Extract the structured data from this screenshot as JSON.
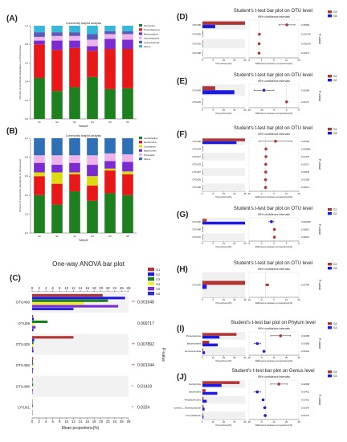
{
  "chart_data": [
    {
      "id": "A",
      "panel_label": "(A)",
      "type": "bar",
      "stacked": true,
      "title": "Community barplot analysis",
      "xlabel": "Sample",
      "ylabel": "Percent of community abundance on Phylum level",
      "categories": [
        "S1",
        "S2",
        "S3",
        "S4",
        "S5",
        "S6"
      ],
      "ylim": [
        0,
        1
      ],
      "legend_position": "top-right",
      "series": [
        {
          "name": "Firmicutes",
          "color": "#1e7f1e",
          "values": [
            0.44,
            0.3,
            0.34,
            0.45,
            0.32,
            0.33
          ]
        },
        {
          "name": "Proteobacteria",
          "color": "#e81818",
          "values": [
            0.36,
            0.44,
            0.42,
            0.28,
            0.43,
            0.42
          ]
        },
        {
          "name": "Bacteroidetes",
          "color": "#7a2cd1",
          "values": [
            0.04,
            0.1,
            0.08,
            0.05,
            0.11,
            0.1
          ]
        },
        {
          "name": "Actinobacteria",
          "color": "#efb3ec",
          "values": [
            0.04,
            0.05,
            0.05,
            0.07,
            0.05,
            0.06
          ]
        },
        {
          "name": "Cyanobacteria",
          "color": "#5a5ab8",
          "values": [
            0.05,
            0.04,
            0.04,
            0.06,
            0.03,
            0.03
          ]
        },
        {
          "name": "others",
          "color": "#38b7d8",
          "values": [
            0.07,
            0.07,
            0.07,
            0.09,
            0.06,
            0.06
          ]
        }
      ]
    },
    {
      "id": "B",
      "panel_label": "(B)",
      "type": "bar",
      "stacked": true,
      "title": "Community barplot analysis",
      "xlabel": "Sample",
      "ylabel": "Percent of community abundance on Genus level",
      "categories": [
        "S1",
        "S2",
        "S3",
        "S4",
        "S5",
        "S6"
      ],
      "ylim": [
        0,
        1
      ],
      "legend_position": "right",
      "series": [
        {
          "name": "Lactobacillus",
          "color": "#1e7f1e",
          "values": [
            0.4,
            0.3,
            0.44,
            0.34,
            0.42,
            0.4
          ]
        },
        {
          "name": "Escherichia",
          "color": "#e81818",
          "values": [
            0.2,
            0.22,
            0.18,
            0.16,
            0.24,
            0.22
          ]
        },
        {
          "name": "Clostridium",
          "color": "#dcdc10",
          "values": [
            0.04,
            0.12,
            0.02,
            0.1,
            0.02,
            0.03
          ]
        },
        {
          "name": "Bacteroides",
          "color": "#7a2cd1",
          "values": [
            0.1,
            0.08,
            0.1,
            0.12,
            0.08,
            0.1
          ]
        },
        {
          "name": "Prevotella",
          "color": "#efb3ec",
          "values": [
            0.08,
            0.1,
            0.08,
            0.1,
            0.08,
            0.08
          ]
        },
        {
          "name": "others",
          "color": "#2e6fb5",
          "values": [
            0.18,
            0.18,
            0.18,
            0.18,
            0.16,
            0.17
          ]
        }
      ]
    },
    {
      "id": "C",
      "panel_label": "(C)",
      "type": "bar",
      "orientation": "horizontal",
      "title": "One-way ANOVA bar plot",
      "xlabel": "Mean proportions(%)",
      "ylabel": "",
      "right_label": "P-value",
      "xlim": [
        0,
        28
      ],
      "xticks": [
        0,
        2,
        4,
        6,
        8,
        10,
        12,
        14,
        16,
        18,
        20,
        22,
        24,
        26,
        28
      ],
      "categories": [
        "OTU499",
        "OTU09",
        "OTU429",
        "OTU459",
        "OTU498",
        "OTU01"
      ],
      "p_values": [
        "0.001648",
        "0.069717",
        "0.007892",
        "0.001344",
        "0.01419",
        "0.0324"
      ],
      "sig_marks": [
        "**",
        "",
        "**",
        "**",
        "*",
        "*"
      ],
      "series": [
        {
          "name": "G1",
          "color": "#b03535",
          "values": [
            20.5,
            0.3,
            12,
            0.3,
            0.2,
            0.1
          ]
        },
        {
          "name": "G2",
          "color": "#1a1ae0",
          "values": [
            27,
            0.5,
            0.6,
            0.2,
            0.1,
            0.1
          ]
        },
        {
          "name": "G3",
          "color": "#1e7f1e",
          "values": [
            22,
            4.5,
            0.4,
            0.3,
            0.3,
            0.2
          ]
        },
        {
          "name": "G4",
          "color": "#f0f030",
          "values": [
            15,
            0.6,
            0.5,
            0.2,
            0.1,
            0.1
          ]
        },
        {
          "name": "G5",
          "color": "#7a2cd1",
          "values": [
            25,
            1.0,
            0.3,
            0.3,
            0.2,
            0.1
          ]
        },
        {
          "name": "G6",
          "color": "#2b2bd0",
          "values": [
            12,
            0.4,
            0.4,
            0.2,
            0.1,
            0.1
          ]
        }
      ]
    },
    {
      "id": "D",
      "panel_label": "(D)",
      "type": "bar",
      "orientation": "horizontal",
      "title": "Student's t-test bar plot on OTU level",
      "ci_title": "95% confidence intervals",
      "xlabel": "Proportions(%)",
      "ci_xlabel": "Difference between proportions(%)",
      "right_label": "P-value",
      "groups": [
        {
          "name": "G5",
          "color": "#b03535"
        },
        {
          "name": "G6",
          "color": "#1a1ae0"
        }
      ],
      "categories": [
        "OTU499",
        "OTU459",
        "OTU429",
        "OTU498"
      ],
      "group1": [
        20,
        0.3,
        0.2,
        0.1
      ],
      "group2": [
        6,
        0.1,
        0.1,
        0.1
      ],
      "xlim": [
        0,
        20
      ],
      "ci_xlim": [
        -5,
        20
      ],
      "diff": [
        14,
        0.2,
        0.1,
        0.05
      ],
      "ci_low": [
        10,
        0.05,
        0.02,
        0.0
      ],
      "ci_high": [
        18,
        0.35,
        0.2,
        0.1
      ],
      "p_values": [
        "0.00595",
        "0.001748",
        "0.002148",
        "0.00371"
      ]
    },
    {
      "id": "E",
      "panel_label": "(E)",
      "type": "bar",
      "orientation": "horizontal",
      "title": "Student's t-test bar plot on OTU level",
      "ci_title": "95% confidence intervals",
      "xlabel": "Proportions(%)",
      "ci_xlabel": "Difference between proportions(%)",
      "right_label": "P-value",
      "groups": [
        {
          "name": "G4",
          "color": "#b03535"
        },
        {
          "name": "G2",
          "color": "#1a1ae0"
        }
      ],
      "categories": [
        "OTU499",
        "OTU429"
      ],
      "group1": [
        6,
        0.2
      ],
      "group2": [
        15,
        0.1
      ],
      "xlim": [
        0,
        20
      ],
      "ci_xlim": [
        -15,
        5
      ],
      "diff": [
        -9,
        0.1
      ],
      "ci_low": [
        -13,
        0.0
      ],
      "ci_high": [
        -5,
        0.2
      ],
      "p_values": [
        "0.01080",
        "0.04177"
      ]
    },
    {
      "id": "F",
      "panel_label": "(F)",
      "type": "bar",
      "orientation": "horizontal",
      "title": "Student's t-test bar plot on OTU level",
      "ci_title": "95% confidence intervals",
      "xlabel": "Proportions(%)",
      "ci_xlabel": "Difference between proportions(%)",
      "right_label": "P-value",
      "groups": [
        {
          "name": "G4",
          "color": "#b03535"
        },
        {
          "name": "G6",
          "color": "#1a1ae0"
        }
      ],
      "categories": [
        "OTU499",
        "OTU453",
        "OTU447",
        "OTU423",
        "OTU467",
        "OTU429",
        "OTU438"
      ],
      "group1": [
        30,
        0.4,
        0.3,
        0.2,
        0.2,
        0.1,
        0.1
      ],
      "group2": [
        24,
        0.2,
        0.1,
        0.1,
        0.1,
        0.1,
        0.1
      ],
      "xlim": [
        0,
        30
      ],
      "ci_xlim": [
        -10,
        20
      ],
      "diff": [
        6,
        0.2,
        0.2,
        0.1,
        0.1,
        0.0,
        0.0
      ],
      "ci_low": [
        -4,
        0.0,
        0.0,
        0.0,
        0.0,
        -0.1,
        -0.1
      ],
      "ci_high": [
        16,
        0.4,
        0.4,
        0.2,
        0.2,
        0.1,
        0.1
      ],
      "p_values": [
        "0.00180",
        "0.000856",
        "0.01497",
        "0.01517",
        "0.02078",
        "0.03158",
        "0.04011"
      ]
    },
    {
      "id": "G",
      "panel_label": "(G)",
      "type": "bar",
      "orientation": "horizontal",
      "title": "Student's t-test bar plot on OTU level",
      "ci_title": "95% confidence intervals",
      "xlabel": "Proportions(%)",
      "ci_xlabel": "Difference between proportions(%)",
      "right_label": "P-value",
      "groups": [
        {
          "name": "G1",
          "color": "#b03535"
        },
        {
          "name": "G2",
          "color": "#1a1ae0"
        }
      ],
      "categories": [
        "OTU459",
        "OTU498",
        "OTU476"
      ],
      "group1": [
        2,
        0.3,
        0.2
      ],
      "group2": [
        20,
        0.2,
        0.1
      ],
      "xlim": [
        0,
        20
      ],
      "ci_xlim": [
        -5,
        5
      ],
      "diff": [
        -0.5,
        0.1,
        0.1
      ],
      "ci_low": [
        -1,
        0.0,
        0.0
      ],
      "ci_high": [
        0,
        0.2,
        0.2
      ],
      "p_values": [
        "0.004968",
        "0.00612",
        "0.03013"
      ]
    },
    {
      "id": "H",
      "panel_label": "(H)",
      "type": "bar",
      "orientation": "horizontal",
      "title": "Student's t-test bar plot on OTU level",
      "ci_title": "95% confidence intervals",
      "xlabel": "Proportions(%)",
      "ci_xlabel": "Difference between proportions(%)",
      "right_label": "P-value",
      "groups": [
        {
          "name": "G2",
          "color": "#b03535"
        },
        {
          "name": "G5",
          "color": "#1a1ae0"
        }
      ],
      "categories": [
        "OTU499"
      ],
      "group1": [
        20
      ],
      "group2": [
        2
      ],
      "xlim": [
        0,
        20
      ],
      "ci_xlim": [
        -10,
        20
      ],
      "diff": [
        1
      ],
      "ci_low": [
        0
      ],
      "ci_high": [
        2
      ],
      "p_values": [
        "0.00749"
      ]
    },
    {
      "id": "I",
      "panel_label": "(I)",
      "type": "bar",
      "orientation": "horizontal",
      "title": "Student's t-test bar plot on Phylum level",
      "ci_title": "95% confidence intervals",
      "xlabel": "Proportions(%)",
      "ci_xlabel": "Difference between proportions(%)",
      "right_label": "P-value",
      "groups": [
        {
          "name": "G4",
          "color": "#b03535"
        },
        {
          "name": "G3",
          "color": "#1a1ae0"
        }
      ],
      "categories": [
        "Proteobacteria",
        "Bacteroidetes",
        "Verrucomicrobia"
      ],
      "group1": [
        40,
        8,
        1
      ],
      "group2": [
        20,
        18,
        3
      ],
      "xlim": [
        0,
        50
      ],
      "ci_xlim": [
        -20,
        40
      ],
      "diff": [
        18,
        -10,
        -2
      ],
      "ci_low": [
        6,
        -14,
        -3
      ],
      "ci_high": [
        30,
        -6,
        -1
      ],
      "p_values": [
        "0.01680",
        "0.00368",
        "0.01412"
      ]
    },
    {
      "id": "J",
      "panel_label": "(J)",
      "type": "bar",
      "orientation": "horizontal",
      "title": "Student's t-test bar plot on Genus level",
      "ci_title": "95% confidence intervals",
      "xlabel": "Proportions(%)",
      "ci_xlabel": "Difference between proportions(%)",
      "right_label": "P-value",
      "groups": [
        {
          "name": "G4",
          "color": "#b03535"
        },
        {
          "name": "G3",
          "color": "#1a1ae0"
        }
      ],
      "categories": [
        "Escherichia",
        "Bacteroides",
        "Parabacteroides",
        "norank_f__Muribaculaceae",
        "Prevotellaceae"
      ],
      "group1": [
        35,
        3,
        1,
        1,
        0.5
      ],
      "group2": [
        18,
        14,
        4,
        2,
        1
      ],
      "xlim": [
        0,
        40
      ],
      "ci_xlim": [
        -20,
        40
      ],
      "diff": [
        16,
        -10,
        -3,
        -1,
        -0.5
      ],
      "ci_low": [
        6,
        -14,
        -4,
        -2,
        -1
      ],
      "ci_high": [
        26,
        -6,
        -2,
        0,
        0
      ],
      "p_values": [
        "0.02608",
        "0.00412",
        "0.01411",
        "0.01879",
        "0.04113"
      ]
    }
  ]
}
